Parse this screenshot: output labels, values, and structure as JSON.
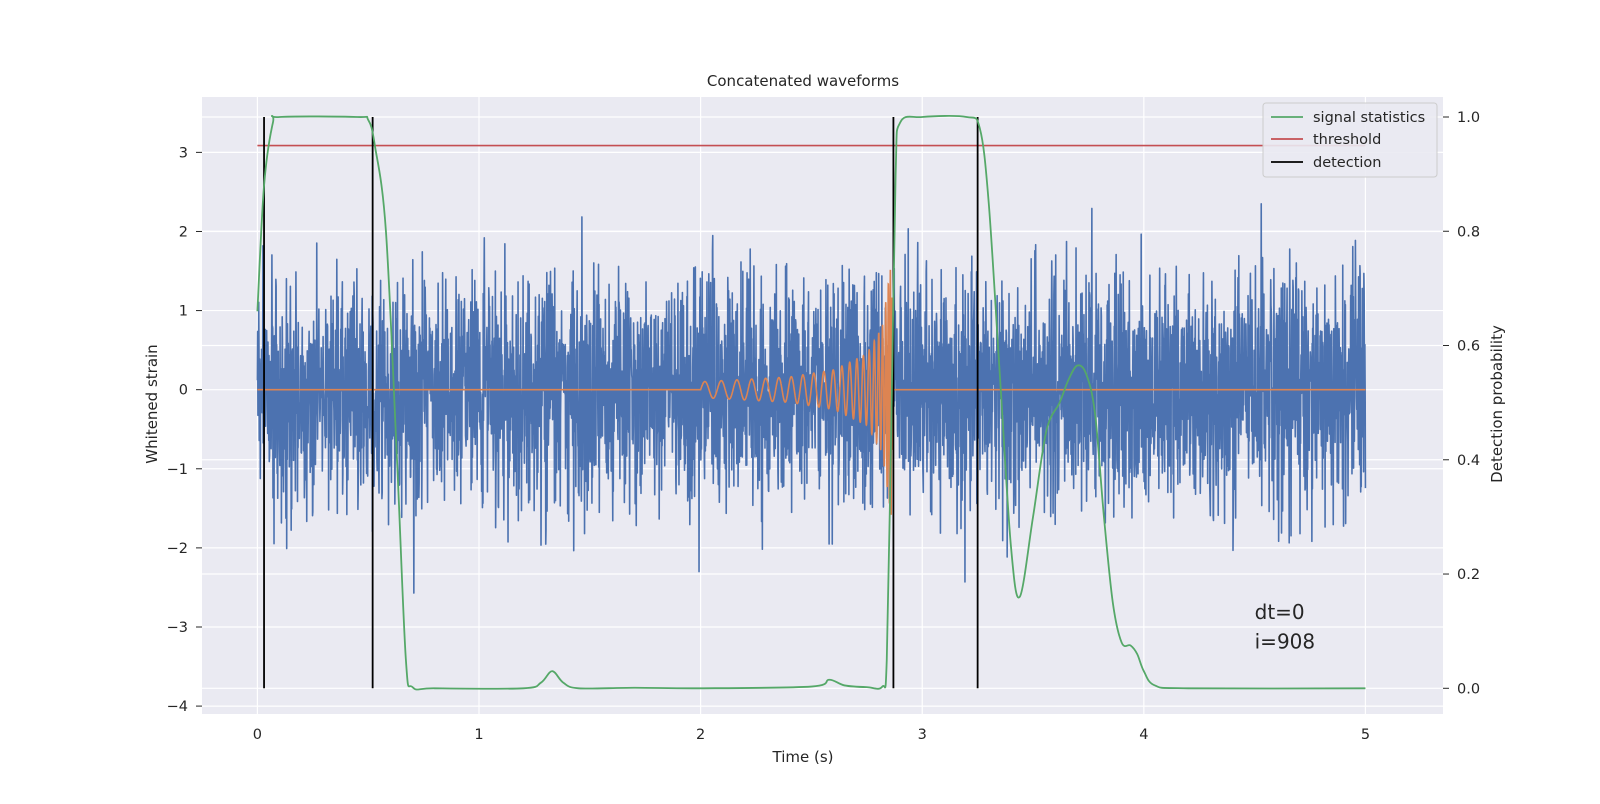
{
  "chart_data": {
    "type": "line",
    "title": "Concatenated waveforms",
    "xlabel": "Time (s)",
    "ylabel": "Whitened strain",
    "y2label": "Detection probability",
    "xlim": [
      -0.25,
      5.35
    ],
    "ylim": [
      -4.1,
      3.7
    ],
    "y2lim": [
      -0.045,
      1.035
    ],
    "xticks": [
      0,
      1,
      2,
      3,
      4,
      5
    ],
    "yticks": [
      -4,
      -3,
      -2,
      -1,
      0,
      1,
      2,
      3
    ],
    "y2ticks": [
      0.0,
      0.2,
      0.4,
      0.6,
      0.8,
      1.0
    ],
    "grid": true,
    "legend_position": "top-right",
    "series": [
      {
        "name": "",
        "role": "whitened strain noise",
        "color": "#4c72b0",
        "axis": "left",
        "sigma": 0.72,
        "x_range": [
          0,
          5
        ]
      },
      {
        "name": "",
        "role": "injected chirp",
        "color": "#dd8452",
        "axis": "left",
        "x_start": 2.0,
        "x_merger": 2.87,
        "envelope": {
          "x": [
            2.0,
            2.4,
            2.6,
            2.75,
            2.82,
            2.86,
            2.87
          ],
          "amp": [
            0.1,
            0.16,
            0.25,
            0.45,
            0.8,
            1.6,
            0.0
          ]
        }
      },
      {
        "name": "signal statistics",
        "color": "#55a868",
        "axis": "right",
        "x": [
          0,
          0.03,
          0.07,
          0.1,
          0.45,
          0.5,
          0.53,
          0.58,
          0.63,
          0.67,
          0.7,
          0.8,
          1.2,
          1.28,
          1.33,
          1.38,
          1.45,
          1.7,
          2.0,
          2.5,
          2.58,
          2.65,
          2.75,
          2.82,
          2.84,
          2.86,
          2.88,
          2.9,
          3.0,
          3.2,
          3.26,
          3.3,
          3.35,
          3.4,
          3.44,
          3.5,
          3.56,
          3.62,
          3.66,
          3.7,
          3.74,
          3.78,
          3.82,
          3.86,
          3.9,
          3.94,
          3.97,
          4.0,
          4.05,
          4.2,
          5.0
        ],
        "y": [
          0.66,
          0.88,
          0.99,
          1.0,
          1.0,
          0.995,
          0.95,
          0.8,
          0.4,
          0.05,
          0.002,
          0.0,
          0.0,
          0.01,
          0.03,
          0.01,
          0.0,
          0.001,
          0.0,
          0.003,
          0.015,
          0.005,
          0.002,
          0.003,
          0.05,
          0.45,
          0.9,
          0.99,
          1.0,
          1.0,
          0.98,
          0.85,
          0.55,
          0.25,
          0.16,
          0.3,
          0.45,
          0.5,
          0.54,
          0.565,
          0.55,
          0.48,
          0.3,
          0.15,
          0.08,
          0.075,
          0.06,
          0.03,
          0.005,
          0.0,
          0.0
        ]
      },
      {
        "name": "threshold",
        "color": "#c44e52",
        "axis": "right",
        "x": [
          0,
          5
        ],
        "y": [
          0.95,
          0.95
        ]
      },
      {
        "name": "detection",
        "color": "#000000",
        "axis": "right",
        "type": "vlines",
        "x": [
          0.03,
          0.52,
          2.87,
          3.25
        ],
        "ymin": 0.0,
        "ymax": 1.0
      }
    ],
    "annotations": [
      {
        "text": "dt=0",
        "x": 4.5,
        "y": -2.9
      },
      {
        "text": "i=908",
        "x": 4.5,
        "y": -3.27
      }
    ]
  }
}
